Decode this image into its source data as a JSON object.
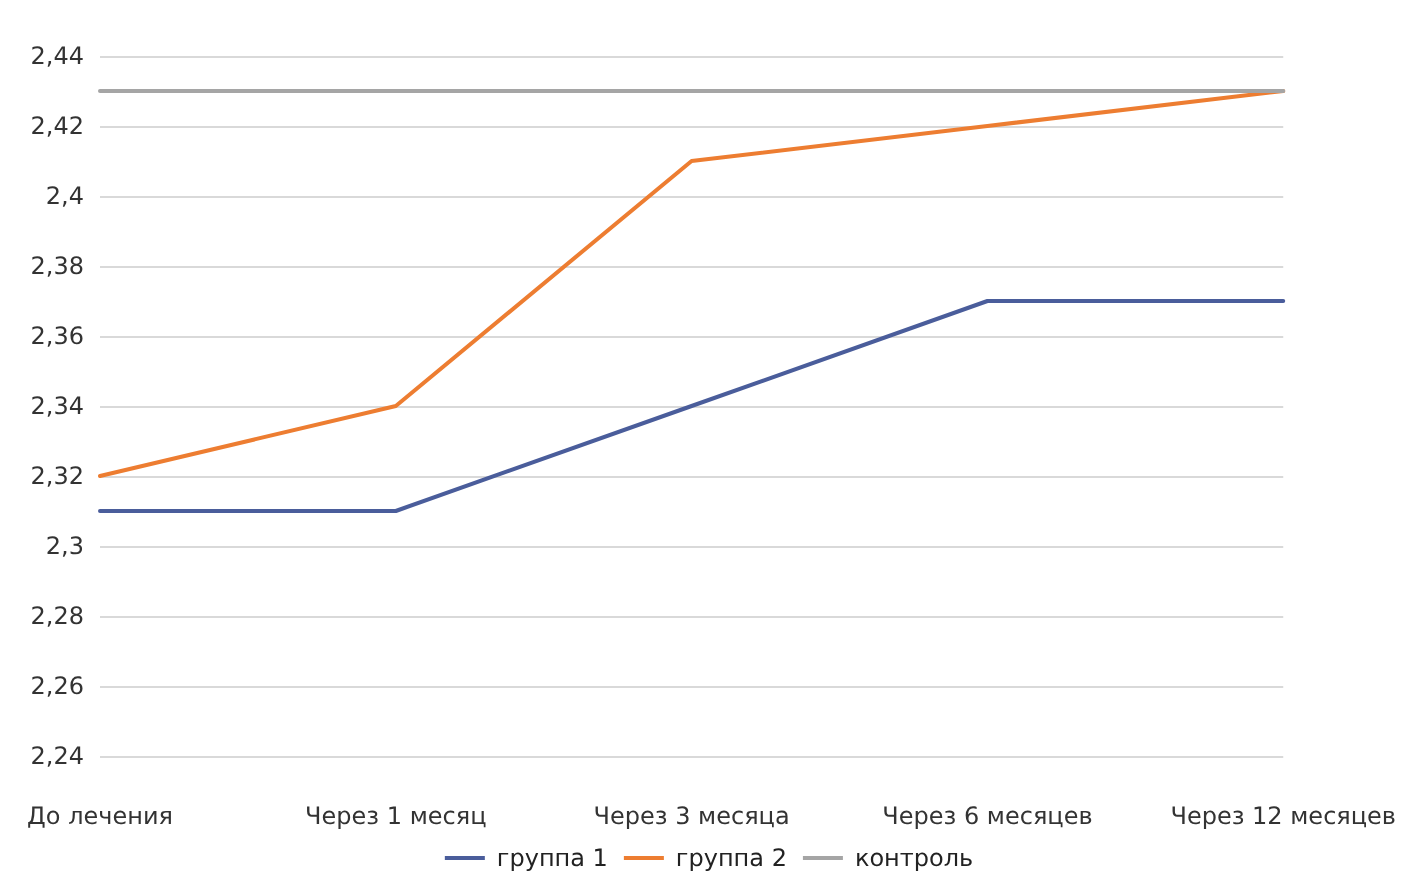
{
  "chart_data": {
    "type": "line",
    "categories": [
      "До лечения",
      "Через 1 месяц",
      "Через 3 месяца",
      "Через 6 месяцев",
      "Через 12 месяцев"
    ],
    "series": [
      {
        "name": "группа 1",
        "color": "#4a5d9b",
        "values": [
          2.31,
          2.31,
          2.34,
          2.37,
          2.37
        ]
      },
      {
        "name": "группа 2",
        "color": "#ed7d31",
        "values": [
          2.32,
          2.34,
          2.41,
          2.42,
          2.43
        ]
      },
      {
        "name": "контроль",
        "color": "#a5a5a5",
        "values": [
          2.43,
          2.43,
          2.43,
          2.43,
          2.43
        ]
      }
    ],
    "ylim": [
      2.24,
      2.44
    ],
    "yticks": [
      {
        "value": 2.24,
        "label": "2,24"
      },
      {
        "value": 2.26,
        "label": "2,26"
      },
      {
        "value": 2.28,
        "label": "2,28"
      },
      {
        "value": 2.3,
        "label": "2,3"
      },
      {
        "value": 2.32,
        "label": "2,32"
      },
      {
        "value": 2.34,
        "label": "2,34"
      },
      {
        "value": 2.36,
        "label": "2,36"
      },
      {
        "value": 2.38,
        "label": "2,38"
      },
      {
        "value": 2.4,
        "label": "2,4"
      },
      {
        "value": 2.42,
        "label": "2,42"
      },
      {
        "value": 2.44,
        "label": "2,44"
      }
    ],
    "grid": "y",
    "legend": "bottom",
    "marker": "none",
    "line_style": "solid"
  }
}
